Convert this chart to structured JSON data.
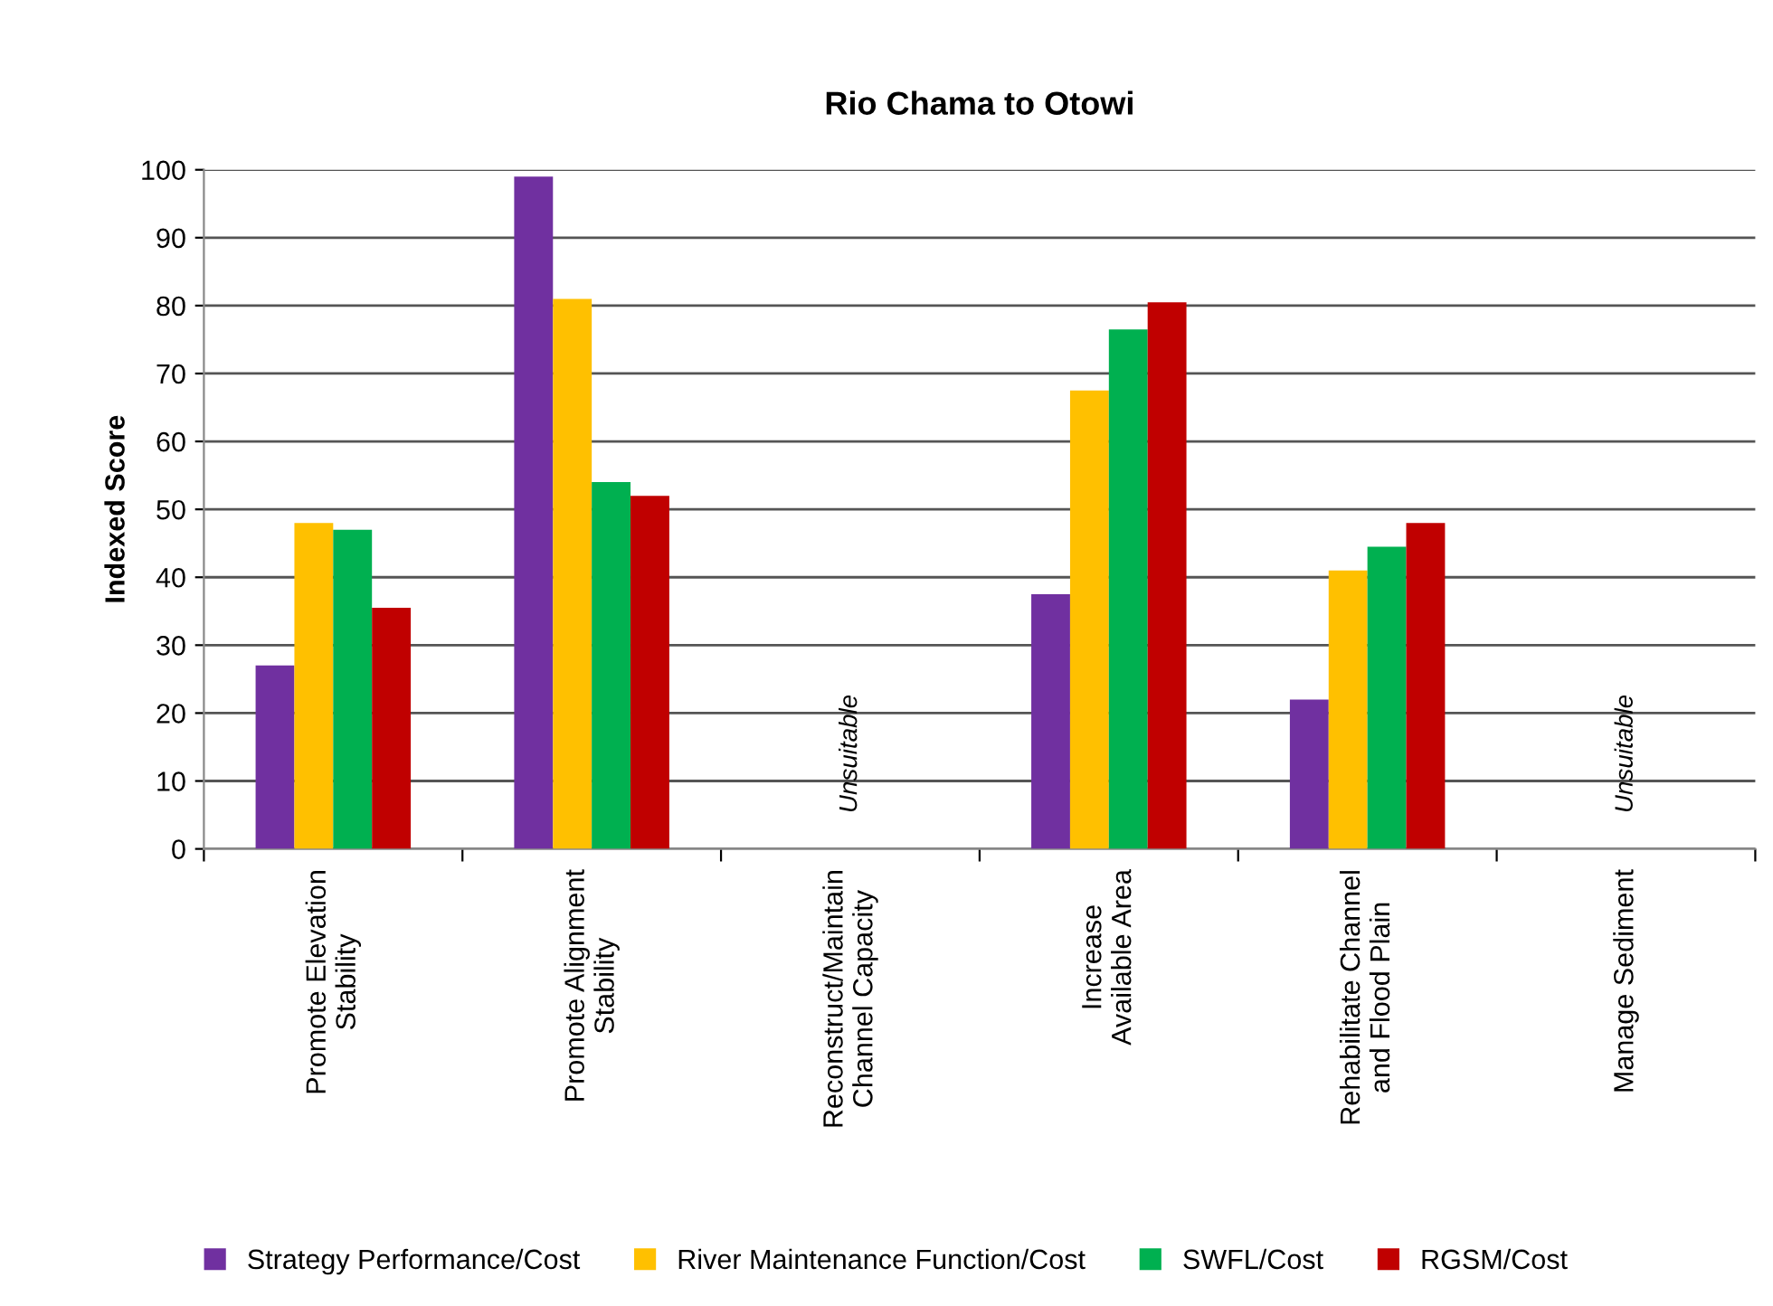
{
  "chart_data": {
    "type": "bar",
    "title": "Rio Chama to Otowi",
    "ylabel": "Indexed Score",
    "categories": [
      "Promote Elevation\nStability",
      "Promote Alignment\nStability",
      "Reconstruct/Maintain\nChannel Capacity",
      "Increase\nAvailable Area",
      "Rehabilitate Channel\nand Flood Plain",
      "Manage Sediment"
    ],
    "series": [
      {
        "name": "Strategy Performance/Cost",
        "color": "#7030a0",
        "values": [
          27,
          99,
          null,
          37.5,
          22,
          null
        ]
      },
      {
        "name": "River Maintenance Function/Cost",
        "color": "#ffc000",
        "values": [
          48,
          81,
          null,
          67.5,
          41,
          null
        ]
      },
      {
        "name": "SWFL/Cost",
        "color": "#00b050",
        "values": [
          47,
          54,
          null,
          76.5,
          44.5,
          null
        ]
      },
      {
        "name": "RGSM/Cost",
        "color": "#c00000",
        "values": [
          35.5,
          52,
          null,
          80.5,
          48,
          null
        ]
      }
    ],
    "annotations": [
      "Unsuitable",
      "Unsuitable"
    ],
    "ylim": [
      0,
      100
    ],
    "yticks": [
      0,
      10,
      20,
      30,
      40,
      50,
      60,
      70,
      80,
      90,
      100
    ],
    "grid": "y",
    "legend": "bottom"
  }
}
